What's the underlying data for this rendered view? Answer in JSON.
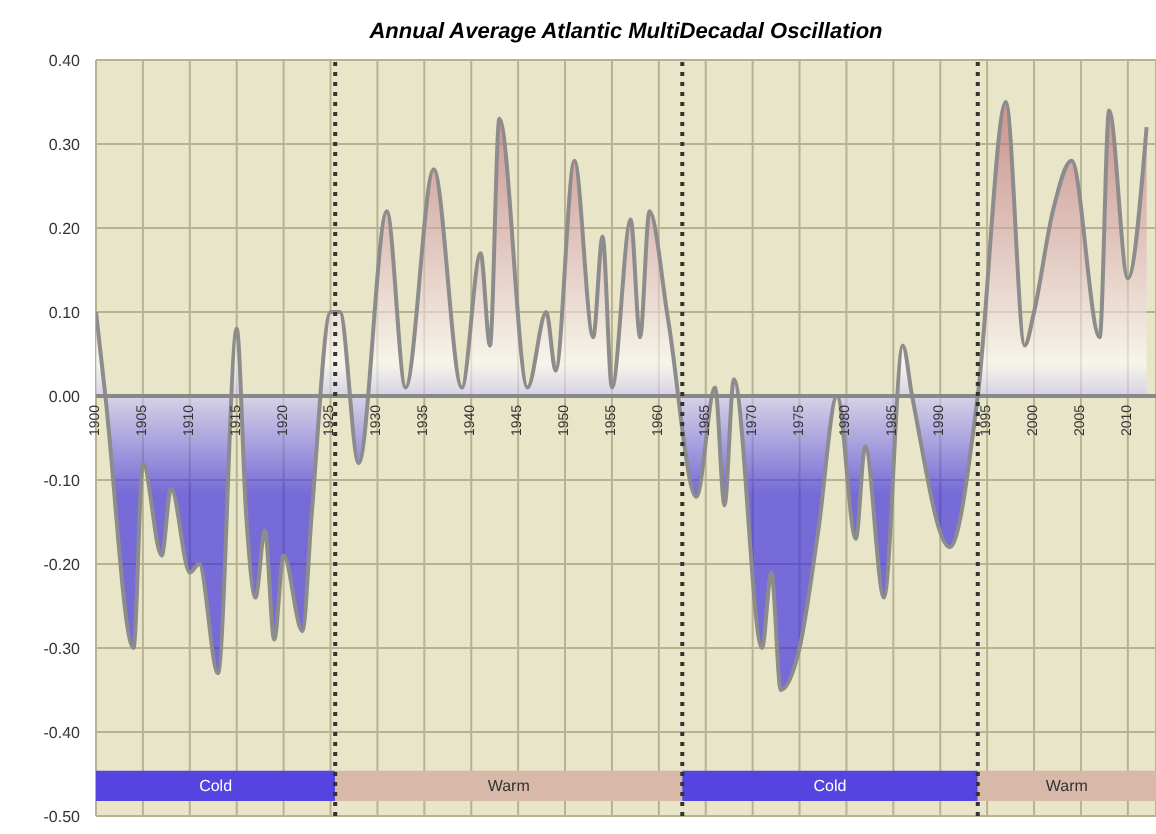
{
  "chart_data": {
    "type": "area",
    "title": "Annual Average Atlantic MultiDecadal Oscillation",
    "x": [
      1900,
      1901,
      1904,
      1905,
      1907,
      1908,
      1910,
      1911,
      1913,
      1915,
      1916,
      1917,
      1918,
      1919,
      1920,
      1922,
      1923,
      1925,
      1926,
      1928,
      1931,
      1933,
      1936,
      1939,
      1941,
      1942,
      1943,
      1946,
      1948,
      1949,
      1951,
      1953,
      1954,
      1955,
      1957,
      1958,
      1959,
      1961,
      1964,
      1966,
      1967,
      1968,
      1971,
      1972,
      1973,
      1975,
      1977,
      1979,
      1981,
      1982,
      1984,
      1986,
      1987,
      1991,
      1994,
      1997,
      1999,
      2000,
      2002,
      2004,
      2007,
      2008,
      2010,
      2012
    ],
    "series": [
      {
        "color": "#8c8c8c",
        "values": [
          0.1,
          0.0,
          -0.3,
          -0.08,
          -0.19,
          -0.11,
          -0.21,
          -0.2,
          -0.33,
          0.08,
          -0.14,
          -0.24,
          -0.16,
          -0.29,
          -0.19,
          -0.28,
          -0.14,
          0.1,
          0.1,
          -0.08,
          0.22,
          0.01,
          0.27,
          0.01,
          0.17,
          0.06,
          0.33,
          0.01,
          0.1,
          0.03,
          0.28,
          0.07,
          0.19,
          0.01,
          0.21,
          0.07,
          0.22,
          0.09,
          -0.12,
          0.01,
          -0.13,
          0.02,
          -0.3,
          -0.21,
          -0.35,
          -0.3,
          -0.16,
          0.0,
          -0.17,
          -0.06,
          -0.24,
          0.06,
          0.0,
          -0.18,
          0.0,
          0.35,
          0.06,
          0.1,
          0.22,
          0.28,
          0.07,
          0.34,
          0.14,
          0.32
        ]
      }
    ],
    "xlim": [
      1900,
      2013
    ],
    "xticks": [
      1900,
      1905,
      1910,
      1915,
      1920,
      1925,
      1930,
      1935,
      1940,
      1945,
      1950,
      1955,
      1960,
      1965,
      1970,
      1975,
      1980,
      1985,
      1990,
      1995,
      2000,
      2005,
      2010
    ],
    "ylim": [
      -0.5,
      0.4
    ],
    "yticks": [
      {
        "value": 0.4,
        "label": "0.40"
      },
      {
        "value": 0.3,
        "label": "0.30"
      },
      {
        "value": 0.2,
        "label": "0.20"
      },
      {
        "value": 0.1,
        "label": "0.10"
      },
      {
        "value": 0,
        "label": "0.00"
      },
      {
        "value": -0.1,
        "label": "-0.10"
      },
      {
        "value": -0.2,
        "label": "-0.20"
      },
      {
        "value": -0.3,
        "label": "-0.30"
      },
      {
        "value": -0.4,
        "label": "-0.40"
      },
      {
        "value": -0.5,
        "label": "-0.50"
      }
    ],
    "grid": true,
    "ref_lines": [
      {
        "axis": "x",
        "value": 1925.5,
        "line_style": "dotted",
        "color": "#333333"
      },
      {
        "axis": "x",
        "value": 1962.5,
        "line_style": "dotted",
        "color": "#333333"
      },
      {
        "axis": "x",
        "value": 1994,
        "line_style": "dotted",
        "color": "#333333"
      }
    ],
    "bands": [
      {
        "axis": "x",
        "from": 1900,
        "to": 1925.5,
        "label": "Cold",
        "color": "#5544e0"
      },
      {
        "axis": "x",
        "from": 1925.5,
        "to": 1962.5,
        "label": "Warm",
        "color": "#d8b8a8"
      },
      {
        "axis": "x",
        "from": 1962.5,
        "to": 1994,
        "label": "Cold",
        "color": "#5544e0"
      },
      {
        "axis": "x",
        "from": 1994,
        "to": 2013,
        "label": "Warm",
        "color": "#d8b8a8"
      }
    ]
  }
}
